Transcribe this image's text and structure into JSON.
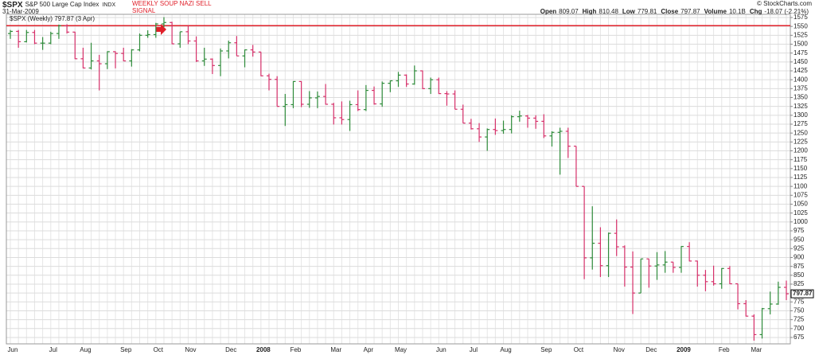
{
  "chart_data": {
    "type": "ohlc",
    "symbol": "$SPX",
    "name": "S&P 500 Large Cap Index",
    "exchange": "INDX",
    "date": "31-Mar-2009",
    "quote": [
      {
        "label": "Open",
        "value": "809.07"
      },
      {
        "label": "High",
        "value": "810.48"
      },
      {
        "label": "Low",
        "value": "779.81"
      },
      {
        "label": "Close",
        "value": "797.87"
      },
      {
        "label": "Volume",
        "value": "10.1B"
      },
      {
        "label": "Chg",
        "value": "-18.07 (-2.21%)"
      }
    ],
    "credit": "© StockCharts.com",
    "annotation": {
      "value": 1552,
      "label": "WEEKLY SOUP NAZI SELL SIGNAL",
      "color": "#e0202a"
    },
    "categories": [
      "Jun",
      null,
      null,
      null,
      null,
      "Jul",
      null,
      null,
      null,
      "Aug",
      null,
      null,
      null,
      null,
      "Sep",
      null,
      null,
      null,
      "Oct",
      null,
      null,
      null,
      "Nov",
      null,
      null,
      null,
      null,
      "Dec",
      null,
      null,
      null,
      "2008",
      null,
      null,
      null,
      "Feb",
      null,
      null,
      null,
      null,
      "Mar",
      null,
      null,
      null,
      "Apr",
      null,
      null,
      null,
      "May",
      null,
      null,
      null,
      null,
      "Jun",
      null,
      null,
      null,
      "Jul",
      null,
      null,
      null,
      "Aug",
      null,
      null,
      null,
      null,
      "Sep",
      null,
      null,
      null,
      "Oct",
      null,
      null,
      null,
      null,
      "Nov",
      null,
      null,
      null,
      "Dec",
      null,
      null,
      null,
      "2009",
      null,
      null,
      null,
      null,
      "Feb",
      null,
      null,
      null,
      "Mar",
      null,
      null,
      null,
      null
    ],
    "series": [
      {
        "name": "$SPX (Weekly) 797.87 (3 Apr)",
        "up_color": "#2e8b3a",
        "down_color": "#d6306a",
        "open": [
          1530,
          1536,
          1507,
          1533,
          1503,
          1503,
          1530,
          1552,
          1534,
          1459,
          1433,
          1453,
          1445,
          1479,
          1474,
          1453,
          1484,
          1525,
          1527,
          1557,
          1561,
          1501,
          1535,
          1509,
          1453,
          1458,
          1440,
          1481,
          1504,
          1467,
          1484,
          1478,
          1411,
          1401,
          1325,
          1330,
          1395,
          1331,
          1349,
          1353,
          1331,
          1293,
          1288,
          1330,
          1316,
          1370,
          1332,
          1390,
          1397,
          1413,
          1388,
          1425,
          1375,
          1400,
          1361,
          1360,
          1317,
          1278,
          1262,
          1239,
          1260,
          1257,
          1260,
          1296,
          1298,
          1292,
          1283,
          1242,
          1252,
          1255,
          1213,
          1100,
          899,
          940,
          877,
          968,
          930,
          873,
          800,
          896,
          876,
          879,
          887,
          872,
          931,
          890,
          850,
          832,
          826,
          869,
          826,
          770,
          735,
          683,
          756,
          769,
          816
        ],
        "high": [
          1540,
          1540,
          1540,
          1540,
          1520,
          1535,
          1555,
          1556,
          1535,
          1490,
          1504,
          1470,
          1480,
          1480,
          1490,
          1486,
          1530,
          1539,
          1560,
          1576,
          1563,
          1535,
          1552,
          1522,
          1490,
          1460,
          1488,
          1510,
          1523,
          1485,
          1498,
          1478,
          1417,
          1410,
          1360,
          1396,
          1396,
          1368,
          1367,
          1388,
          1335,
          1339,
          1341,
          1370,
          1385,
          1381,
          1395,
          1398,
          1422,
          1415,
          1440,
          1426,
          1406,
          1406,
          1368,
          1370,
          1330,
          1290,
          1278,
          1263,
          1291,
          1285,
          1300,
          1313,
          1301,
          1300,
          1303,
          1255,
          1265,
          1265,
          1213,
          1100,
          1044,
          985,
          970,
          1007,
          934,
          917,
          896,
          896,
          915,
          918,
          887,
          932,
          943,
          891,
          865,
          877,
          870,
          876,
          826,
          780,
          740,
          758,
          804,
          832,
          835
        ],
        "low": [
          1515,
          1490,
          1505,
          1500,
          1484,
          1500,
          1515,
          1530,
          1458,
          1432,
          1429,
          1370,
          1430,
          1432,
          1452,
          1437,
          1480,
          1518,
          1518,
          1548,
          1500,
          1490,
          1500,
          1450,
          1439,
          1416,
          1410,
          1460,
          1467,
          1435,
          1465,
          1410,
          1370,
          1325,
          1270,
          1320,
          1323,
          1321,
          1320,
          1330,
          1274,
          1274,
          1256,
          1312,
          1312,
          1330,
          1324,
          1365,
          1380,
          1380,
          1386,
          1374,
          1360,
          1360,
          1327,
          1317,
          1278,
          1260,
          1225,
          1200,
          1245,
          1248,
          1249,
          1282,
          1265,
          1262,
          1236,
          1212,
          1133,
          1180,
          1100,
          839,
          866,
          845,
          845,
          904,
          818,
          741,
          800,
          815,
          837,
          857,
          857,
          857,
          889,
          818,
          805,
          821,
          812,
          825,
          754,
          734,
          666,
          672,
          740,
          767,
          780
        ],
        "close": [
          1536,
          1507,
          1533,
          1503,
          1503,
          1530,
          1552,
          1534,
          1459,
          1433,
          1453,
          1445,
          1479,
          1474,
          1453,
          1484,
          1525,
          1527,
          1557,
          1561,
          1501,
          1535,
          1509,
          1453,
          1458,
          1440,
          1481,
          1504,
          1467,
          1484,
          1478,
          1411,
          1401,
          1325,
          1330,
          1395,
          1331,
          1349,
          1353,
          1331,
          1293,
          1288,
          1330,
          1316,
          1370,
          1332,
          1390,
          1397,
          1413,
          1388,
          1425,
          1375,
          1400,
          1361,
          1360,
          1317,
          1278,
          1262,
          1239,
          1260,
          1257,
          1260,
          1296,
          1298,
          1292,
          1283,
          1242,
          1252,
          1255,
          1213,
          1100,
          899,
          940,
          877,
          968,
          930,
          873,
          800,
          896,
          876,
          879,
          887,
          872,
          931,
          890,
          850,
          832,
          826,
          869,
          826,
          770,
          735,
          683,
          756,
          769,
          816,
          797.87
        ]
      }
    ],
    "ylim": [
      657,
      1584
    ],
    "yticks": [
      675,
      700,
      725,
      750,
      775,
      800,
      825,
      850,
      875,
      900,
      925,
      950,
      975,
      1000,
      1025,
      1050,
      1075,
      1100,
      1125,
      1150,
      1175,
      1200,
      1225,
      1250,
      1275,
      1300,
      1325,
      1350,
      1375,
      1400,
      1425,
      1450,
      1475,
      1500,
      1525,
      1550,
      1575
    ],
    "grid": true
  }
}
